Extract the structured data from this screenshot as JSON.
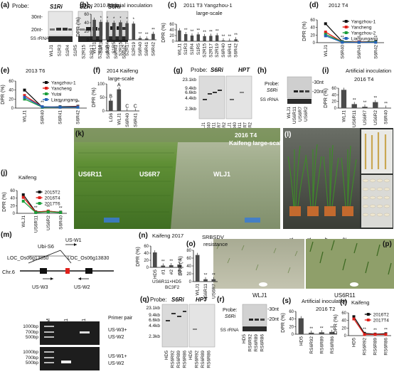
{
  "figure": {
    "a": {
      "letter": "(a)",
      "probe": "Probe:",
      "probes": [
        "S1Ri",
        "S2Ri",
        "S6Ri"
      ],
      "size_30": "30nt-",
      "size_20": "20nt-",
      "loading": "5S rRNA",
      "lanes": [
        "WLJ1",
        "S1R3",
        "S1R4",
        "S1R5",
        "S2R15",
        "S2R17",
        "S2R19",
        "S6R40",
        "S6R41",
        "S6R42"
      ]
    },
    "b": {
      "letter": "(b)",
      "title": "2010 T2",
      "subtitle": "Artificial inoculation",
      "ylabel": "DPR (%)"
    },
    "c": {
      "letter": "(c)",
      "title": "2011 T3 Yangzhou-1",
      "subtitle": "large-scale",
      "ylabel": "DPR (%)"
    },
    "d": {
      "letter": "(d)",
      "title": "2012 T4",
      "ylabel": "DPR (%)",
      "legend": [
        "Yangzhou-1",
        "Yancheng",
        "Yangzhou-2",
        "Lianyungang"
      ]
    },
    "e": {
      "letter": "(e)",
      "title": "2013 T6",
      "ylabel": "DPR (%)",
      "legend": [
        "Yangzhou-1",
        "Yancheng",
        "Yutai",
        "Lianyungang"
      ]
    },
    "f": {
      "letter": "(f)",
      "title": "2014 Kaifeng",
      "subtitle": "large-scale",
      "ylabel": "DPR (%)",
      "labels_top": [
        "B",
        "A",
        "C",
        "C"
      ]
    },
    "g": {
      "letter": "(g)",
      "probe": "Probe:",
      "probes": [
        "S6Ri",
        "HPT"
      ],
      "sizes": [
        "23.1kb",
        "9.4kb",
        "6.6kb",
        "4.4kb",
        "2.3kb"
      ],
      "lanes": [
        "WLJ1",
        "S6R40",
        "US6R11",
        "US6R7",
        "US6R2",
        "WLJ1",
        "S6R40",
        "US6R11",
        "US6R7",
        "US6R2"
      ]
    },
    "h": {
      "letter": "(h)",
      "probe": "Probe:",
      "probe_name": "S6Ri",
      "sizes": [
        "-30nt",
        "-20nt"
      ],
      "loading": "5S rRNA",
      "lanes": [
        "WLJ1",
        "US6R11",
        "US6R7",
        "US6R2"
      ]
    },
    "i": {
      "letter": "(i)",
      "title": "Artificial inoculation",
      "subtitle": "2016 T4",
      "ylabel": "DPR (%)"
    },
    "j": {
      "letter": "(j)",
      "title": "Kaifeng",
      "ylabel": "DPR (%)",
      "legend": [
        "2015T2",
        "2016T4",
        "2017T6"
      ]
    },
    "k": {
      "letter": "(k)",
      "label_left": "US6R11",
      "label_mid": "US6R7",
      "label_right": "WLJ1",
      "caption_1": "2016 T4",
      "caption_2": "Kaifeng large-scale"
    },
    "l": {
      "letter": "(l)",
      "lanes": [
        "WLJ1",
        "US6R11",
        "US6R7",
        "US6R2"
      ]
    },
    "m": {
      "letter": "(m)",
      "insert": "Ubi-S6",
      "loc_left": "LOC_Os06g13850",
      "loc_right": "LOC_Os06g13830",
      "chr": "Chr.6",
      "primers": [
        "US-W1",
        "US-W3",
        "US-W2"
      ],
      "gel_cols": [
        "M",
        "US6R11",
        "WLJ1"
      ],
      "ladder": [
        "1000bp",
        "700bp",
        "500bp",
        "1000bp",
        "700bp",
        "500bp"
      ],
      "primer_pair": "Primer pair",
      "pair1": [
        "US-W3+",
        "US-W2"
      ],
      "pair2": [
        "US-W1+",
        "US-W2"
      ]
    },
    "n": {
      "letter": "(n)",
      "title": "Kaifeng 2017",
      "ylabel": "DPR (%)",
      "cross": "US6R11×HD5",
      "gen": "BC3F2"
    },
    "o": {
      "letter": "(o)",
      "title": "SRBSDV",
      "subtitle": "resistance",
      "ylabel": "DPR (%)"
    },
    "p": {
      "letter": "(p)",
      "label_left": "WLJ1",
      "label_right": "US6R11"
    },
    "q": {
      "letter": "(q)",
      "probe": "Probe:",
      "probes": [
        "S6Ri",
        "HPT"
      ],
      "sizes": [
        "23.1kb",
        "9.4kb",
        "6.6kb",
        "4.4kb",
        "2.3kb"
      ],
      "lanes": [
        "HD5",
        "RS6R92",
        "RS6R89",
        "RS6R86",
        "HD5",
        "RS6R92",
        "RS6R89",
        "RS6R86"
      ]
    },
    "r": {
      "letter": "(r)",
      "probe": "Probe:",
      "probe_name": "S6Ri",
      "sizes": [
        "-30nt",
        "-20nt"
      ],
      "loading": "5S rRNA",
      "lanes": [
        "HD5",
        "RS6R92",
        "RS6R89",
        "RS6R86"
      ]
    },
    "s": {
      "letter": "(s)",
      "title": "Artificial inoculation",
      "subtitle": "2016 T2",
      "ylabel": "DPR (%)"
    },
    "t": {
      "letter": "(t)",
      "title": "Kaifeng",
      "ylabel": "DPR (%)",
      "legend": [
        "2016T2",
        "2017T4"
      ]
    }
  },
  "chart_data": [
    {
      "panel": "b",
      "type": "bar",
      "categories": [
        "WLJ1",
        "S1R3",
        "S1R4",
        "S1R5",
        "S2R15",
        "S2R17",
        "S2R19",
        "S6R40",
        "S6R41",
        "S6R42"
      ],
      "values": [
        47,
        42,
        41,
        40,
        41,
        39,
        38,
        4,
        3,
        14
      ],
      "ylim": [
        0,
        60
      ],
      "yticks": [
        0,
        20,
        40,
        60
      ],
      "sig": [
        "",
        "*",
        "*",
        "*",
        "*",
        "*",
        "*",
        "**",
        "**",
        "**"
      ]
    },
    {
      "panel": "c",
      "type": "bar",
      "categories": [
        "WLJ1",
        "S1R3",
        "S1R4",
        "S1R5",
        "S2R15",
        "S2R17",
        "S2R19",
        "S6R40",
        "S6R41",
        "S6R42"
      ],
      "values": [
        38,
        25,
        20,
        24,
        18,
        19,
        21,
        3,
        2,
        7
      ],
      "ylim": [
        0,
        60
      ],
      "yticks": [
        0,
        20,
        40,
        60
      ],
      "sig": [
        "",
        "**",
        "**",
        "**",
        "**",
        "**",
        "**",
        "**",
        "**",
        "**"
      ]
    },
    {
      "panel": "d",
      "type": "line",
      "categories": [
        "WLJ1",
        "S6R40",
        "S6R41",
        "S6R42"
      ],
      "ylim": [
        0,
        60
      ],
      "yticks": [
        0,
        20,
        40,
        60
      ],
      "series": [
        {
          "name": "Yangzhou-1",
          "values": [
            50,
            3,
            2,
            3
          ],
          "color": "#111111"
        },
        {
          "name": "Yancheng",
          "values": [
            28,
            2,
            2,
            2
          ],
          "color": "#e0201b"
        },
        {
          "name": "Yangzhou-2",
          "values": [
            22,
            2,
            1,
            2
          ],
          "color": "#1a9e3a"
        },
        {
          "name": "Lianyungang",
          "values": [
            18,
            1,
            1,
            1
          ],
          "color": "#2563b8"
        }
      ],
      "sig": [
        "",
        "**",
        "**",
        "**"
      ]
    },
    {
      "panel": "e",
      "type": "line",
      "categories": [
        "WLJ1",
        "S6R40",
        "S6R41",
        "S6R42"
      ],
      "ylim": [
        0,
        60
      ],
      "yticks": [
        0,
        20,
        40,
        60
      ],
      "series": [
        {
          "name": "Yangzhou-1",
          "values": [
            40,
            2,
            3,
            4
          ],
          "color": "#111111"
        },
        {
          "name": "Yancheng",
          "values": [
            28,
            3,
            2,
            3
          ],
          "color": "#e0201b"
        },
        {
          "name": "Yutai",
          "values": [
            20,
            2,
            2,
            2
          ],
          "color": "#1a9e3a"
        },
        {
          "name": "Lianyungang",
          "values": [
            24,
            3,
            2,
            2
          ],
          "color": "#2563b8"
        }
      ],
      "sig": [
        "",
        "**",
        "**",
        "**"
      ]
    },
    {
      "panel": "f",
      "type": "bar",
      "categories": [
        "LG6",
        "WLJ1",
        "S6R40",
        "S6R41"
      ],
      "values": [
        38,
        80,
        1,
        1
      ],
      "ylim": [
        0,
        100
      ],
      "yticks": [
        0,
        50,
        100
      ]
    },
    {
      "panel": "i",
      "type": "bar",
      "categories": [
        "WLJ1",
        "US6R11",
        "US6R7",
        "US6R2",
        "S6R40"
      ],
      "values": [
        55,
        12,
        4,
        18,
        1
      ],
      "ylim": [
        0,
        60
      ],
      "yticks": [
        0,
        20,
        40,
        60
      ],
      "sig": [
        "",
        "**",
        "**",
        "**",
        "**"
      ]
    },
    {
      "panel": "j",
      "type": "line",
      "categories": [
        "WLJ1",
        "US6R11",
        "US6R2",
        "S6R40"
      ],
      "ylim": [
        0,
        60
      ],
      "yticks": [
        0,
        20,
        40,
        60
      ],
      "series": [
        {
          "name": "2015T2",
          "values": [
            49,
            4,
            5,
            3
          ],
          "color": "#111111"
        },
        {
          "name": "2016T4",
          "values": [
            42,
            3,
            6,
            2
          ],
          "color": "#e0201b"
        },
        {
          "name": "2017T6",
          "values": [
            32,
            2,
            4,
            2
          ],
          "color": "#1a9e3a"
        }
      ],
      "sig": [
        "",
        "**",
        "**",
        "**"
      ]
    },
    {
      "panel": "n",
      "type": "bar",
      "categories": [
        "HD5",
        "#1",
        "#2",
        "#3"
      ],
      "values": [
        42,
        5,
        6,
        8
      ],
      "ylim": [
        0,
        60
      ],
      "yticks": [
        0,
        20,
        40,
        60
      ],
      "sig": [
        "",
        "**",
        "**",
        "**"
      ]
    },
    {
      "panel": "o",
      "type": "bar",
      "categories": [
        "WLJ1",
        "US6R11",
        "US6R7"
      ],
      "values": [
        68,
        6,
        6
      ],
      "ylim": [
        0,
        80
      ],
      "yticks": [
        0,
        20,
        40,
        60,
        80
      ],
      "sig": [
        "",
        "**",
        "**"
      ]
    },
    {
      "panel": "s",
      "type": "bar",
      "categories": [
        "HD5",
        "RS6R92",
        "RS6R89",
        "RS6R86"
      ],
      "values": [
        42,
        4,
        5,
        6
      ],
      "ylim": [
        0,
        60
      ],
      "yticks": [
        0,
        20,
        40,
        60
      ],
      "sig": [
        "",
        "**",
        "**",
        "**"
      ]
    },
    {
      "panel": "t",
      "type": "line",
      "categories": [
        "HD5",
        "RS6R92",
        "RS6R89",
        "RS6R86"
      ],
      "ylim": [
        0,
        60
      ],
      "yticks": [
        0,
        20,
        40,
        60
      ],
      "series": [
        {
          "name": "2016T2",
          "values": [
            50,
            6,
            4,
            5
          ],
          "color": "#111111"
        },
        {
          "name": "2017T4",
          "values": [
            44,
            3,
            3,
            3
          ],
          "color": "#e0201b"
        }
      ],
      "sig": [
        "",
        "**",
        "**",
        "**"
      ]
    }
  ]
}
